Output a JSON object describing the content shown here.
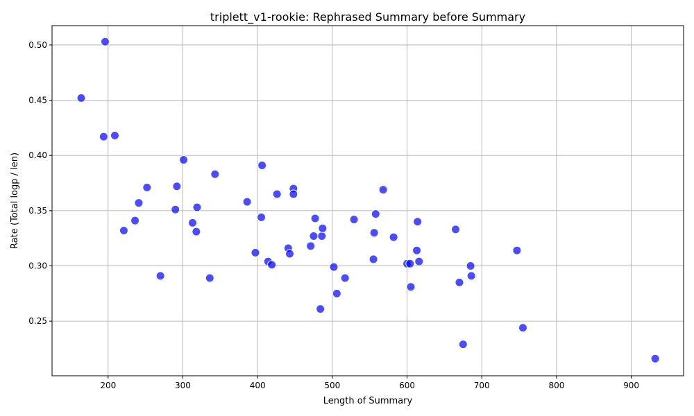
{
  "chart_data": {
    "type": "scatter",
    "title": "triplett_v1-rookie: Rephrased Summary before Summary",
    "xlabel": "Length of Summary",
    "ylabel": "Rate (Total logp / len)",
    "xlim": [
      125,
      970
    ],
    "ylim": [
      0.2005,
      0.5175
    ],
    "xticks": [
      200,
      300,
      400,
      500,
      600,
      700,
      800,
      900
    ],
    "yticks": [
      0.25,
      0.3,
      0.35,
      0.4,
      0.45,
      0.5
    ],
    "grid": true,
    "color": "#0000ff",
    "points": [
      [
        164,
        0.452
      ],
      [
        196,
        0.503
      ],
      [
        194,
        0.417
      ],
      [
        209,
        0.418
      ],
      [
        221,
        0.332
      ],
      [
        236,
        0.341
      ],
      [
        241,
        0.357
      ],
      [
        252,
        0.371
      ],
      [
        270,
        0.291
      ],
      [
        290,
        0.351
      ],
      [
        292,
        0.372
      ],
      [
        301,
        0.396
      ],
      [
        313,
        0.339
      ],
      [
        318,
        0.331
      ],
      [
        319,
        0.353
      ],
      [
        336,
        0.289
      ],
      [
        343,
        0.383
      ],
      [
        386,
        0.358
      ],
      [
        397,
        0.312
      ],
      [
        405,
        0.344
      ],
      [
        406,
        0.391
      ],
      [
        414,
        0.304
      ],
      [
        419,
        0.301
      ],
      [
        426,
        0.365
      ],
      [
        441,
        0.316
      ],
      [
        443,
        0.311
      ],
      [
        448,
        0.37
      ],
      [
        448,
        0.365
      ],
      [
        471,
        0.318
      ],
      [
        475,
        0.327
      ],
      [
        477,
        0.343
      ],
      [
        484,
        0.261
      ],
      [
        486,
        0.327
      ],
      [
        487,
        0.334
      ],
      [
        502,
        0.299
      ],
      [
        506,
        0.275
      ],
      [
        517,
        0.289
      ],
      [
        529,
        0.342
      ],
      [
        555,
        0.306
      ],
      [
        556,
        0.33
      ],
      [
        558,
        0.347
      ],
      [
        568,
        0.369
      ],
      [
        582,
        0.326
      ],
      [
        600,
        0.302
      ],
      [
        604,
        0.302
      ],
      [
        605,
        0.281
      ],
      [
        613,
        0.314
      ],
      [
        614,
        0.34
      ],
      [
        616,
        0.304
      ],
      [
        665,
        0.333
      ],
      [
        670,
        0.285
      ],
      [
        675,
        0.229
      ],
      [
        685,
        0.3
      ],
      [
        686,
        0.291
      ],
      [
        747,
        0.314
      ],
      [
        755,
        0.244
      ],
      [
        932,
        0.216
      ]
    ]
  }
}
